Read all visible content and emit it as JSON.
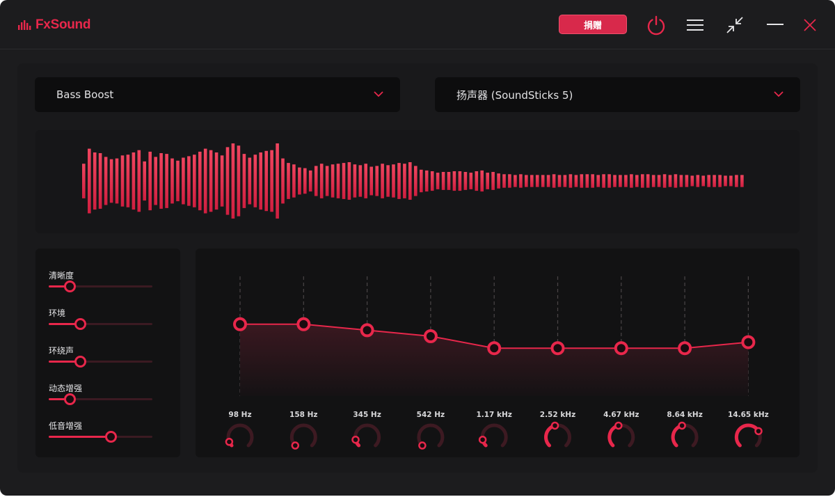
{
  "app": {
    "name": "FxSound",
    "donate_label": "捐赠",
    "accent": "#e8274b"
  },
  "toolbar": {
    "icons": [
      "power-icon",
      "menu-icon",
      "minimize-view-icon",
      "minimize-icon",
      "close-icon"
    ]
  },
  "preset": {
    "selected": "Bass Boost"
  },
  "output_device": {
    "selected": "扬声器 (SoundSticks 5)"
  },
  "effects": [
    {
      "label": "清晰度",
      "value": 0.2
    },
    {
      "label": "环境",
      "value": 0.3
    },
    {
      "label": "环绕声",
      "value": 0.3
    },
    {
      "label": "动态增强",
      "value": 0.2
    },
    {
      "label": "低音增强",
      "value": 0.6
    }
  ],
  "eq": {
    "bands": [
      {
        "label": "98 Hz",
        "gain": 0.6,
        "knob": 0.08
      },
      {
        "label": "158 Hz",
        "gain": 0.6,
        "knob": 0.0
      },
      {
        "label": "345 Hz",
        "gain": 0.55,
        "knob": 0.12
      },
      {
        "label": "542 Hz",
        "gain": 0.5,
        "knob": 0.0
      },
      {
        "label": "1.17 kHz",
        "gain": 0.4,
        "knob": 0.12
      },
      {
        "label": "2.52 kHz",
        "gain": 0.4,
        "knob": 0.45
      },
      {
        "label": "4.67 kHz",
        "gain": 0.4,
        "knob": 0.45
      },
      {
        "label": "8.64 kHz",
        "gain": 0.4,
        "knob": 0.45
      },
      {
        "label": "14.65 kHz",
        "gain": 0.45,
        "knob": 0.72
      }
    ]
  },
  "visualizer": {
    "levels": [
      0.46,
      0.86,
      0.76,
      0.74,
      0.64,
      0.58,
      0.6,
      0.68,
      0.7,
      0.76,
      0.82,
      0.52,
      0.78,
      0.64,
      0.74,
      0.72,
      0.6,
      0.54,
      0.62,
      0.66,
      0.7,
      0.78,
      0.86,
      0.82,
      0.76,
      0.68,
      0.9,
      1.0,
      0.94,
      0.72,
      0.62,
      0.7,
      0.76,
      0.8,
      0.82,
      1.0,
      0.6,
      0.48,
      0.44,
      0.36,
      0.34,
      0.28,
      0.4,
      0.46,
      0.4,
      0.44,
      0.46,
      0.48,
      0.5,
      0.44,
      0.42,
      0.46,
      0.38,
      0.4,
      0.46,
      0.42,
      0.44,
      0.48,
      0.46,
      0.5,
      0.4,
      0.3,
      0.28,
      0.26,
      0.22,
      0.24,
      0.24,
      0.26,
      0.26,
      0.24,
      0.22,
      0.26,
      0.28,
      0.22,
      0.24,
      0.2,
      0.18,
      0.18,
      0.16,
      0.18,
      0.16,
      0.16,
      0.16,
      0.16,
      0.16,
      0.18,
      0.16,
      0.16,
      0.18,
      0.16,
      0.18,
      0.18,
      0.18,
      0.16,
      0.18,
      0.18,
      0.16,
      0.16,
      0.16,
      0.18,
      0.16,
      0.18,
      0.18,
      0.16,
      0.16,
      0.18,
      0.16,
      0.18,
      0.16,
      0.16,
      0.14,
      0.16,
      0.14,
      0.16,
      0.16,
      0.16,
      0.14,
      0.14,
      0.16,
      0.16
    ]
  }
}
